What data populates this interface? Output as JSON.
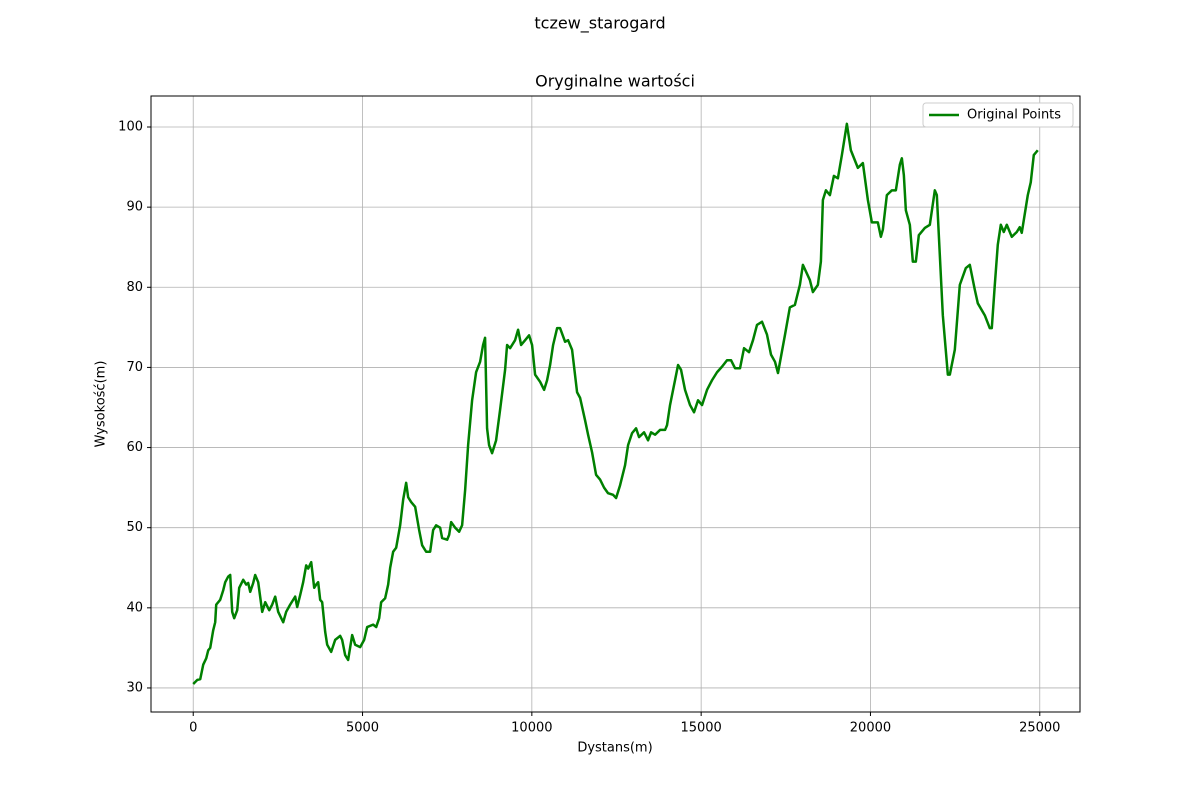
{
  "chart_data": {
    "type": "line",
    "suptitle": "tczew_starogard",
    "title": "Oryginalne wartości",
    "xlabel": "Dystans(m)",
    "ylabel": "Wysokość(m)",
    "x": [
      0,
      118,
      207,
      295,
      384,
      443,
      502,
      590,
      649,
      679,
      797,
      886,
      945,
      1033,
      1092,
      1151,
      1210,
      1299,
      1358,
      1476,
      1565,
      1624,
      1683,
      1771,
      1830,
      1919,
      2037,
      2126,
      2244,
      2332,
      2421,
      2509,
      2657,
      2745,
      2863,
      3011,
      3070,
      3159,
      3247,
      3336,
      3395,
      3484,
      3572,
      3631,
      3690,
      3749,
      3808,
      3897,
      3956,
      4074,
      4192,
      4339,
      4398,
      4487,
      4575,
      4694,
      4782,
      4930,
      5048,
      5137,
      5314,
      5403,
      5491,
      5550,
      5668,
      5757,
      5816,
      5904,
      5993,
      6111,
      6200,
      6288,
      6347,
      6436,
      6554,
      6672,
      6761,
      6879,
      6997,
      7085,
      7174,
      7292,
      7351,
      7499,
      7558,
      7617,
      7735,
      7853,
      7941,
      8030,
      8118,
      8236,
      8354,
      8472,
      8560,
      8619,
      8678,
      8737,
      8826,
      8944,
      9062,
      9210,
      9269,
      9358,
      9505,
      9594,
      9683,
      9801,
      9919,
      10007,
      10096,
      10244,
      10362,
      10450,
      10539,
      10628,
      10746,
      10834,
      10982,
      11070,
      11188,
      11336,
      11425,
      11572,
      11661,
      11779,
      11897,
      12015,
      12133,
      12251,
      12399,
      12488,
      12606,
      12753,
      12842,
      12960,
      13078,
      13166,
      13314,
      13432,
      13521,
      13639,
      13786,
      13934,
      13993,
      14081,
      14200,
      14318,
      14406,
      14524,
      14672,
      14790,
      14908,
      15026,
      15174,
      15321,
      15469,
      15617,
      15764,
      15882,
      16000,
      16148,
      16266,
      16413,
      16531,
      16649,
      16797,
      16944,
      17063,
      17181,
      17269,
      17473,
      17620,
      17768,
      17916,
      18005,
      18211,
      18300,
      18447,
      18536,
      18595,
      18684,
      18802,
      18920,
      19038,
      19156,
      19303,
      19421,
      19628,
      19776,
      19923,
      20041,
      20218,
      20307,
      20366,
      20484,
      20632,
      20750,
      20868,
      20927,
      20986,
      21045,
      21163,
      21251,
      21340,
      21428,
      21606,
      21753,
      21901,
      21960,
      22137,
      22285,
      22344,
      22491,
      22639,
      22816,
      22934,
      23081,
      23170,
      23377,
      23524,
      23583,
      23672,
      23760,
      23849,
      23937,
      24026,
      24173,
      24321,
      24409,
      24468,
      24646,
      24734,
      24823,
      24941
    ],
    "series": [
      {
        "name": "Original Points",
        "color": "#008000",
        "values": [
          30.5,
          31.0,
          31.1,
          32.9,
          33.7,
          34.7,
          35.0,
          37.2,
          38.2,
          40.4,
          41.0,
          42.2,
          43.2,
          43.9,
          44.1,
          39.5,
          38.7,
          39.7,
          42.5,
          43.5,
          42.9,
          43.1,
          42.0,
          43.1,
          44.1,
          43.2,
          39.5,
          40.7,
          39.7,
          40.4,
          41.4,
          39.5,
          38.2,
          39.5,
          40.4,
          41.4,
          40.1,
          41.6,
          43.2,
          45.3,
          44.9,
          45.7,
          42.5,
          42.9,
          43.2,
          41.0,
          40.7,
          37.0,
          35.4,
          34.5,
          36.0,
          36.5,
          36.0,
          34.1,
          33.5,
          36.6,
          35.4,
          35.1,
          36.0,
          37.6,
          37.9,
          37.6,
          38.7,
          40.7,
          41.2,
          42.9,
          45.0,
          47.0,
          47.5,
          50.3,
          53.5,
          55.6,
          53.8,
          53.2,
          52.6,
          49.7,
          47.8,
          47.0,
          47.0,
          49.7,
          50.3,
          50.0,
          48.7,
          48.5,
          49.1,
          50.7,
          50.0,
          49.5,
          50.3,
          54.7,
          60.3,
          65.9,
          69.4,
          70.7,
          72.8,
          73.7,
          62.4,
          60.3,
          59.3,
          60.9,
          64.7,
          69.7,
          72.8,
          72.4,
          73.4,
          74.7,
          72.8,
          73.4,
          74.0,
          72.8,
          69.1,
          68.2,
          67.2,
          68.4,
          70.3,
          72.8,
          74.9,
          74.9,
          73.2,
          73.4,
          72.2,
          66.9,
          66.2,
          63.4,
          61.6,
          59.4,
          56.6,
          56.0,
          55.0,
          54.3,
          54.1,
          53.7,
          55.3,
          57.8,
          60.3,
          61.8,
          62.4,
          61.3,
          61.9,
          60.9,
          61.9,
          61.6,
          62.2,
          62.2,
          62.8,
          65.3,
          67.8,
          70.3,
          69.7,
          67.2,
          65.3,
          64.4,
          65.9,
          65.3,
          67.2,
          68.4,
          69.4,
          70.1,
          70.9,
          70.9,
          69.9,
          69.9,
          72.4,
          71.9,
          73.4,
          75.3,
          75.7,
          74.1,
          71.6,
          70.7,
          69.3,
          74.0,
          77.5,
          77.8,
          80.3,
          82.8,
          80.9,
          79.4,
          80.3,
          83.2,
          90.9,
          92.1,
          91.5,
          93.9,
          93.6,
          96.5,
          100.4,
          97.1,
          94.9,
          95.5,
          90.9,
          88.1,
          88.1,
          86.3,
          87.2,
          91.5,
          92.1,
          92.1,
          95.3,
          96.1,
          94.0,
          89.6,
          87.8,
          83.2,
          83.2,
          86.5,
          87.4,
          87.8,
          92.1,
          91.5,
          76.5,
          69.1,
          69.1,
          72.2,
          80.3,
          82.4,
          82.8,
          79.7,
          78.0,
          76.5,
          74.9,
          74.9,
          80.3,
          85.3,
          87.8,
          86.9,
          87.8,
          86.3,
          86.9,
          87.5,
          86.8,
          91.5,
          93.1,
          96.5,
          97.1
        ]
      }
    ],
    "xlim": [
      -1247,
      26188
    ],
    "ylim": [
      27.0,
      103.87
    ],
    "xticks": [
      0,
      5000,
      10000,
      15000,
      20000,
      25000
    ],
    "yticks": [
      30,
      40,
      50,
      60,
      70,
      80,
      90,
      100
    ],
    "grid": true,
    "legend": "upper right"
  }
}
